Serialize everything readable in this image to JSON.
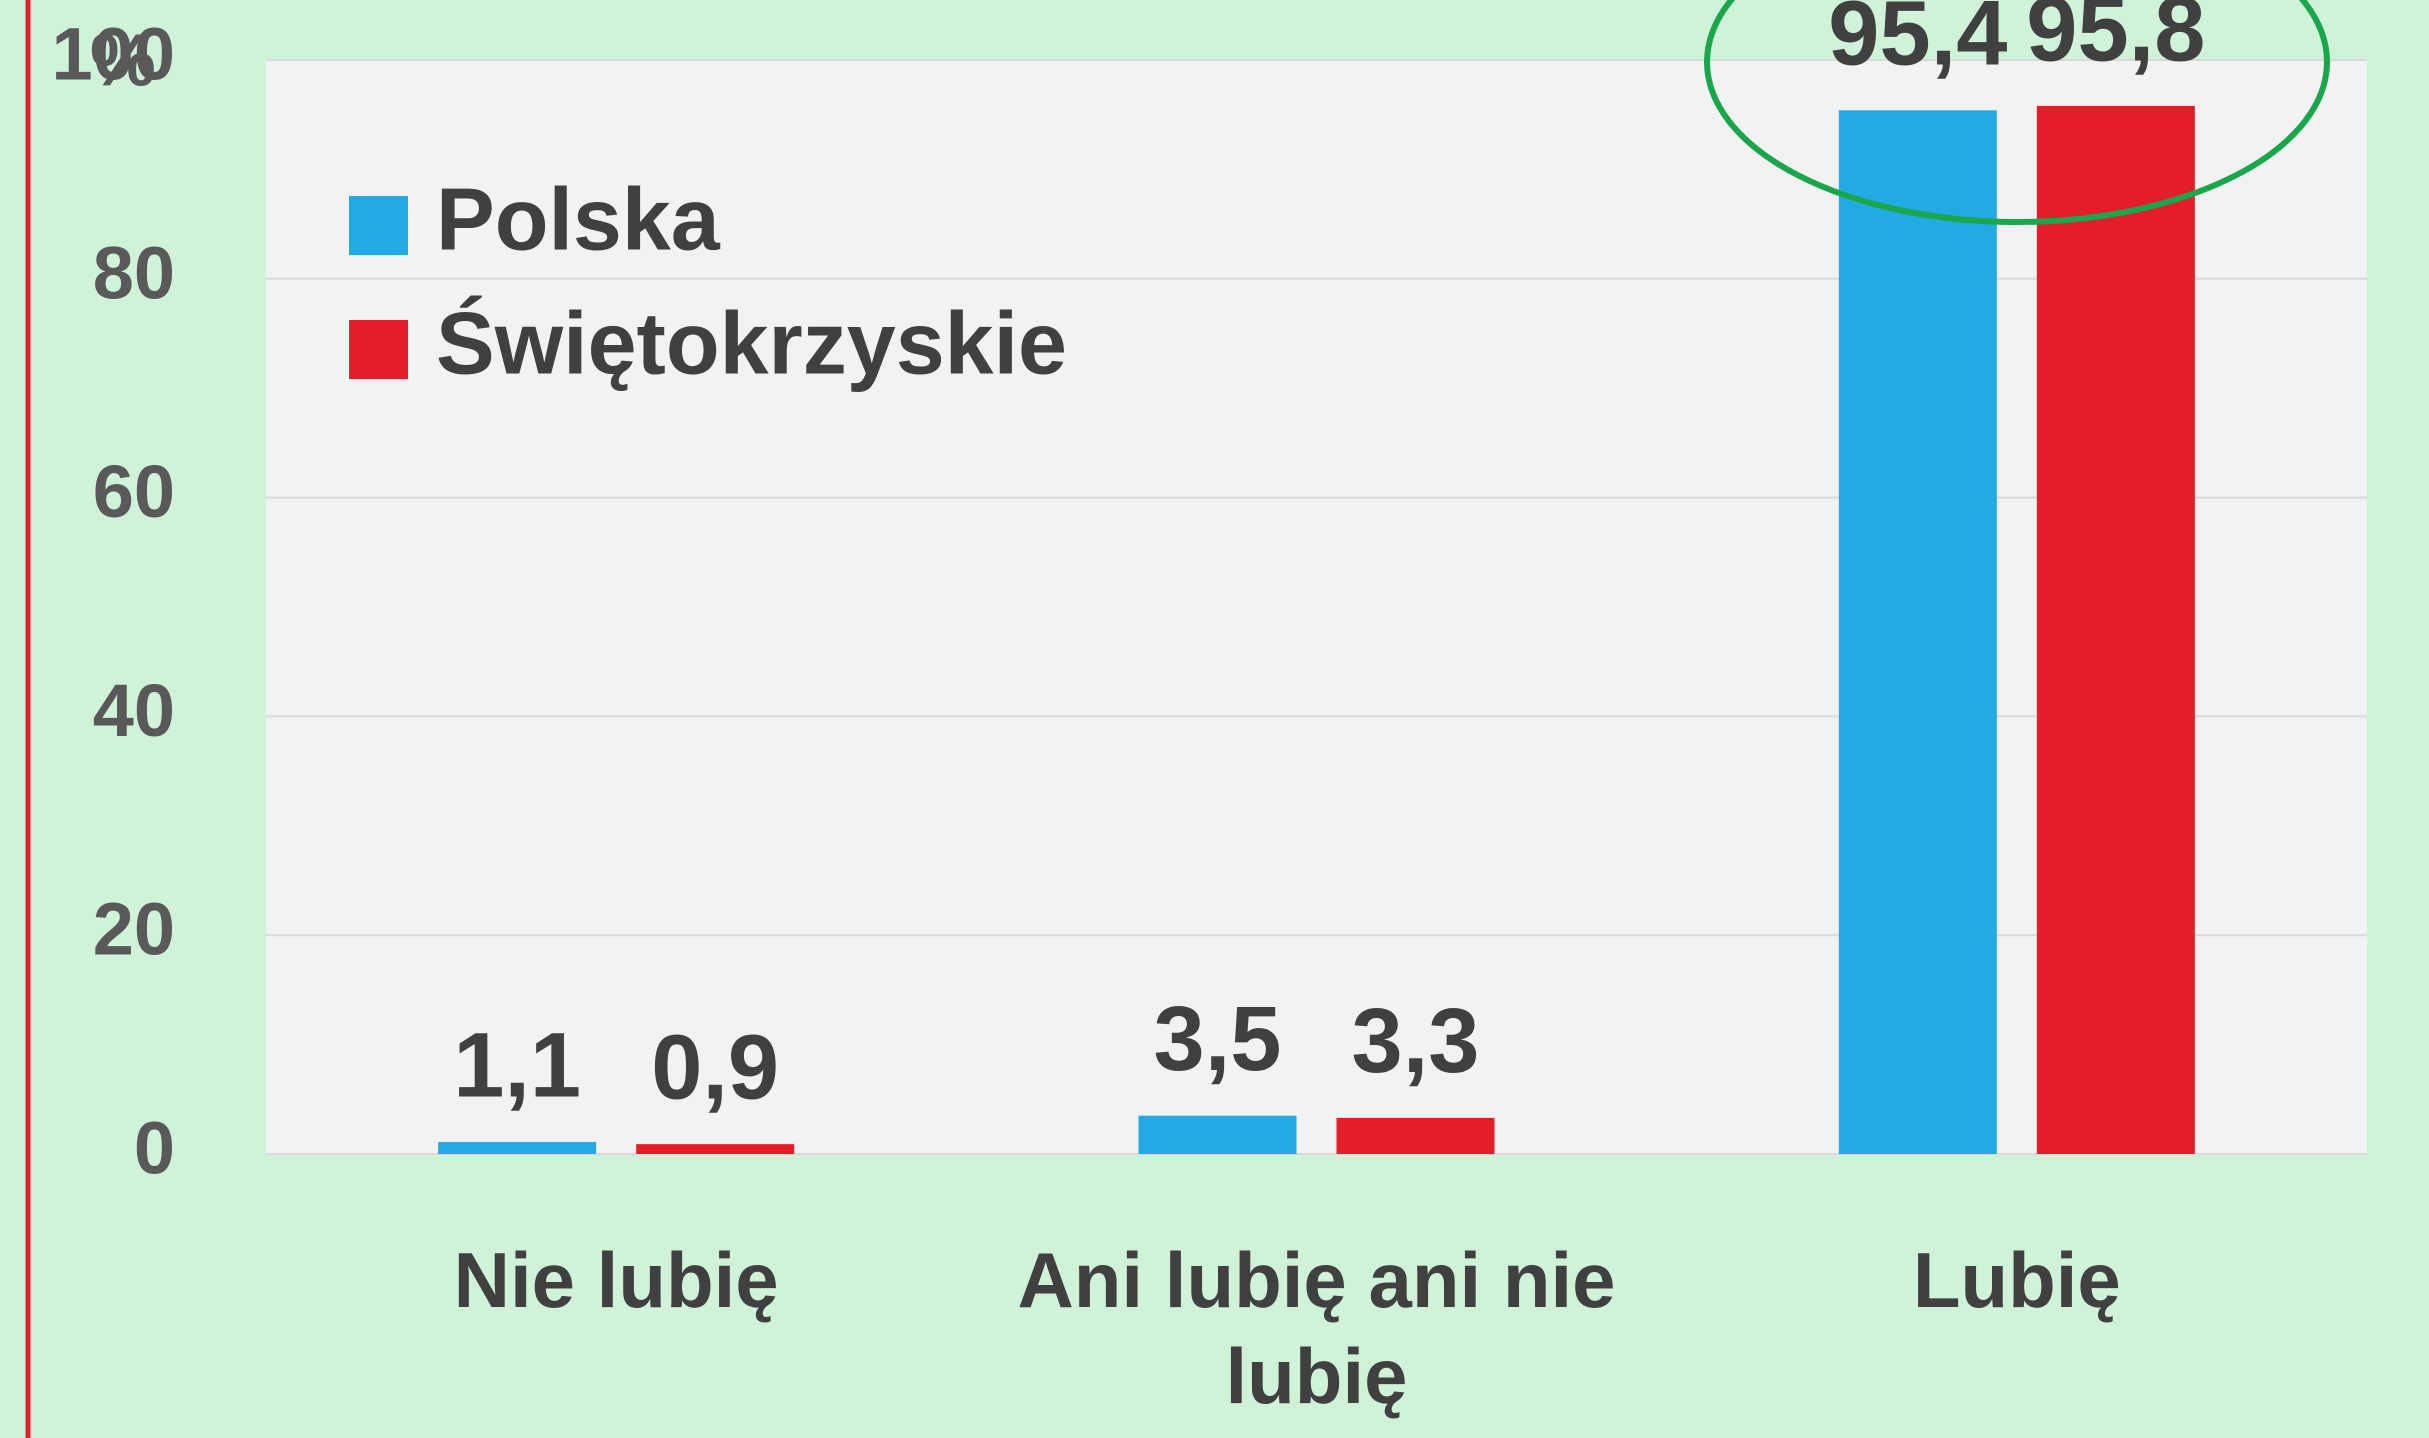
{
  "chart_data": {
    "type": "bar",
    "y_label": "%",
    "categories": [
      "Nie lubię",
      "Ani lubię ani nie lubię",
      "Lubię"
    ],
    "series": [
      {
        "name": "Polska",
        "color": "#24aae2",
        "values": [
          1.1,
          3.5,
          95.4
        ],
        "value_labels": [
          "1,1",
          "3,5",
          "95,4"
        ]
      },
      {
        "name": "Świętokrzyskie",
        "color": "#e31e2a",
        "values": [
          0.9,
          3.3,
          95.8
        ],
        "value_labels": [
          "0,9",
          "3,3",
          "95,8"
        ]
      }
    ],
    "ylim": [
      0,
      100
    ],
    "yticks": [
      0,
      20,
      40,
      60,
      80,
      100
    ],
    "grid": true,
    "legend": "upper left"
  }
}
